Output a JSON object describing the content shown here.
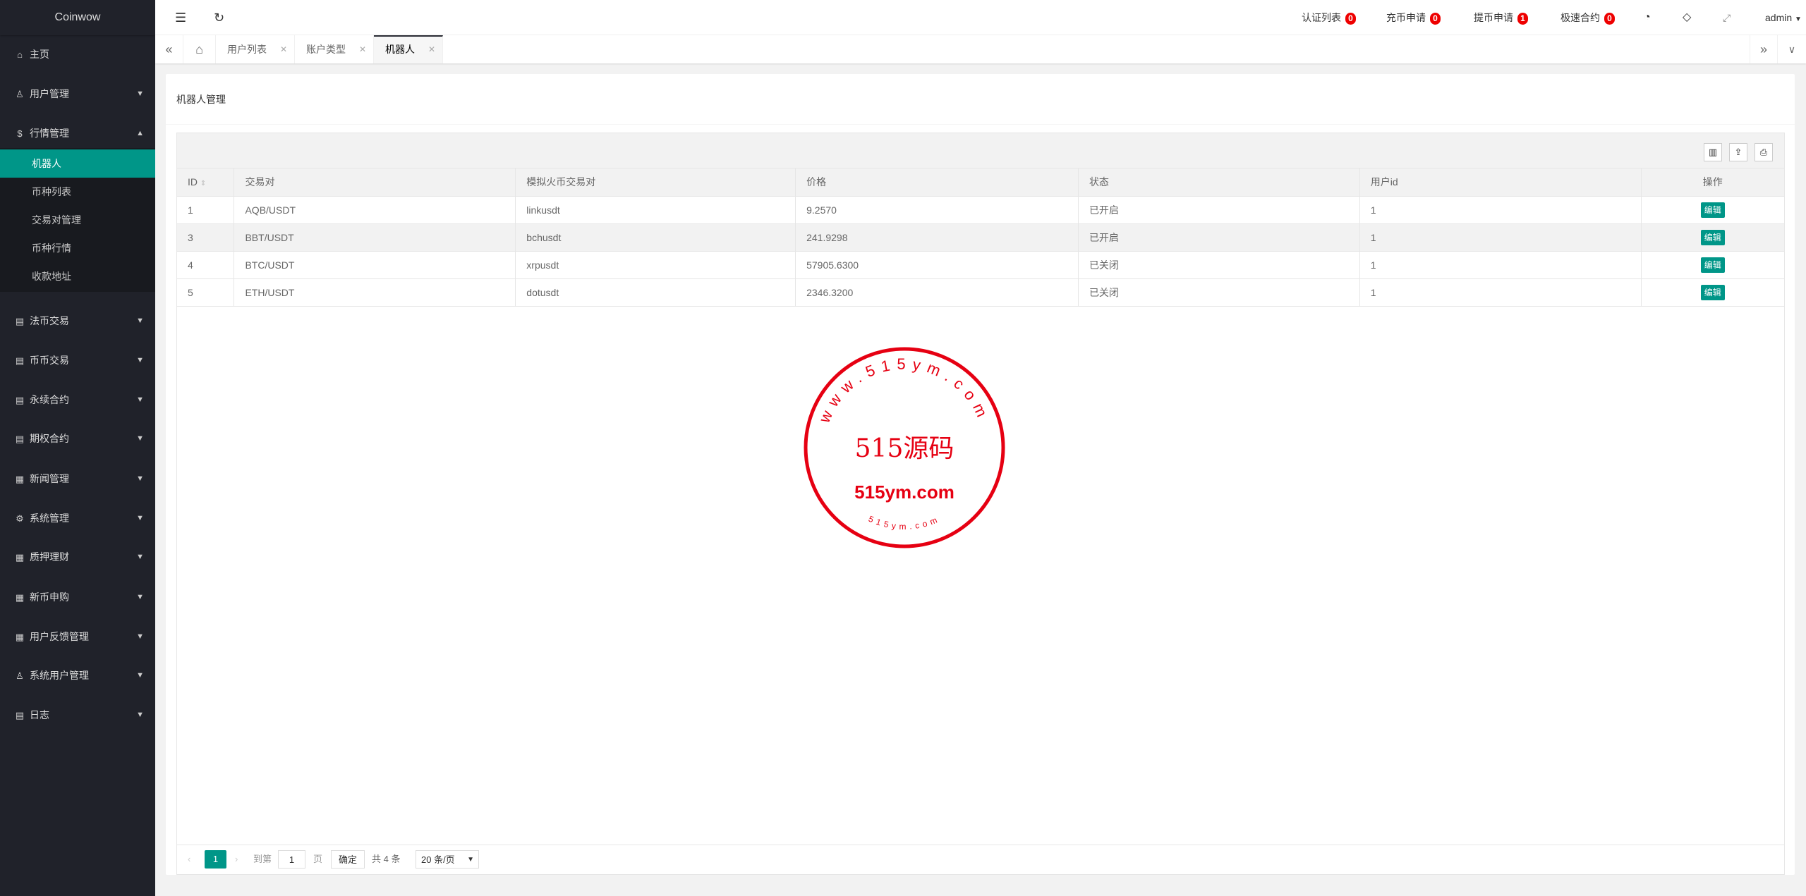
{
  "app": {
    "title": "Coinwow"
  },
  "sidebar": {
    "items": [
      {
        "label": "主页",
        "icon": "home-icon",
        "glyph": "⌂",
        "top": 57,
        "arrow": ""
      },
      {
        "label": "用户管理",
        "icon": "user-icon",
        "glyph": "♙",
        "top": 113,
        "arrow": "▼"
      },
      {
        "label": "行情管理",
        "icon": "dollar-icon",
        "glyph": "$",
        "top": 169,
        "arrow": "▲"
      },
      {
        "label": "法币交易",
        "icon": "doc-icon",
        "glyph": "▤",
        "top": 435,
        "arrow": "▼"
      },
      {
        "label": "币币交易",
        "icon": "doc-icon",
        "glyph": "▤",
        "top": 491,
        "arrow": "▼"
      },
      {
        "label": "永续合约",
        "icon": "doc-icon",
        "glyph": "▤",
        "top": 547,
        "arrow": "▼"
      },
      {
        "label": "期权合约",
        "icon": "doc-icon",
        "glyph": "▤",
        "top": 602,
        "arrow": "▼"
      },
      {
        "label": "新闻管理",
        "icon": "news-icon",
        "glyph": "▦",
        "top": 659,
        "arrow": "▼"
      },
      {
        "label": "系统管理",
        "icon": "gear-icon",
        "glyph": "⚙",
        "top": 715,
        "arrow": "▼"
      },
      {
        "label": "质押理财",
        "icon": "news-icon",
        "glyph": "▦",
        "top": 770,
        "arrow": "▼"
      },
      {
        "label": "新币申购",
        "icon": "news-icon",
        "glyph": "▦",
        "top": 827,
        "arrow": "▼"
      },
      {
        "label": "用户反馈管理",
        "icon": "news-icon",
        "glyph": "▦",
        "top": 883,
        "arrow": "▼"
      },
      {
        "label": "系统用户管理",
        "icon": "user-icon",
        "glyph": "♙",
        "top": 938,
        "arrow": "▼"
      },
      {
        "label": "日志",
        "icon": "doc-icon",
        "glyph": "▤",
        "top": 994,
        "arrow": "▼"
      }
    ],
    "submenu": [
      "机器人",
      "币种列表",
      "交易对管理",
      "币种行情",
      "收款地址"
    ],
    "active_submenu": "机器人"
  },
  "header": {
    "links": [
      {
        "label": "认证列表",
        "count": "0"
      },
      {
        "label": "充币申请",
        "count": "0"
      },
      {
        "label": "提币申请",
        "count": "1"
      },
      {
        "label": "极速合约",
        "count": "0"
      }
    ],
    "user": "admin"
  },
  "tabs": [
    {
      "label": "用户列表"
    },
    {
      "label": "账户类型"
    },
    {
      "label": "机器人",
      "active": true
    }
  ],
  "card": {
    "title": "机器人管理"
  },
  "table": {
    "columns": [
      "ID",
      "交易对",
      "模拟火币交易对",
      "价格",
      "状态",
      "用户id",
      "操作"
    ],
    "rows": [
      {
        "id": "1",
        "pair": "AQB/USDT",
        "sim": "linkusdt",
        "price": "9.2570",
        "status": "已开启",
        "uid": "1",
        "action": "编辑"
      },
      {
        "id": "3",
        "pair": "BBT/USDT",
        "sim": "bchusdt",
        "price": "241.9298",
        "status": "已开启",
        "uid": "1",
        "action": "编辑"
      },
      {
        "id": "4",
        "pair": "BTC/USDT",
        "sim": "xrpusdt",
        "price": "57905.6300",
        "status": "已关闭",
        "uid": "1",
        "action": "编辑"
      },
      {
        "id": "5",
        "pair": "ETH/USDT",
        "sim": "dotusdt",
        "price": "2346.3200",
        "status": "已关闭",
        "uid": "1",
        "action": "编辑"
      }
    ]
  },
  "pager": {
    "current": "1",
    "goto_label": "到第",
    "goto_value": "1",
    "page_unit": "页",
    "confirm": "确定",
    "total": "共 4 条",
    "page_size": "20 条/页"
  },
  "watermark": {
    "ring_text": "www.515ym.com",
    "main": "515源码",
    "sub": "515ym.com",
    "bottom": "515ym.com",
    "color": "#e60012"
  },
  "colors": {
    "accent": "#009688",
    "sidebar": "#20222a",
    "badge": "#e00000"
  }
}
